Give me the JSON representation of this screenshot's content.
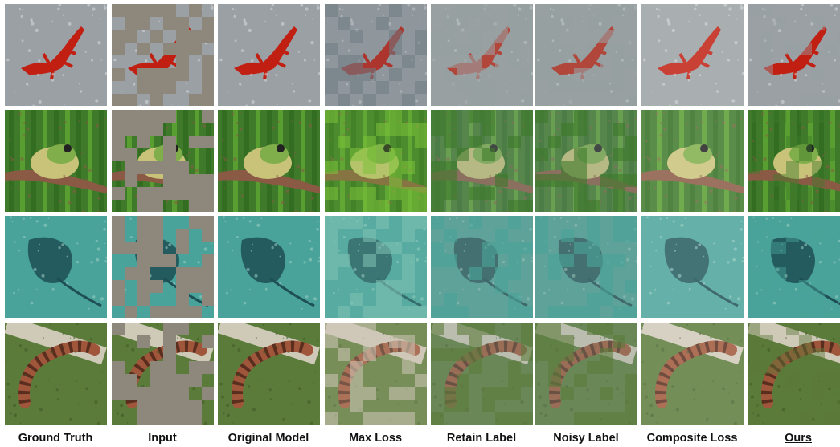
{
  "columns": [
    {
      "label": "Ground Truth",
      "kind": "clean",
      "underline": false
    },
    {
      "label": "Input",
      "kind": "masked",
      "underline": false
    },
    {
      "label": "Original Model",
      "kind": "clean",
      "underline": false
    },
    {
      "label": "Max Loss",
      "kind": "distorted",
      "underline": false
    },
    {
      "label": "Retain Label",
      "kind": "faded",
      "underline": false
    },
    {
      "label": "Noisy Label",
      "kind": "faded",
      "underline": false
    },
    {
      "label": "Composite Loss",
      "kind": "light",
      "underline": false
    },
    {
      "label": "Ours",
      "kind": "partial",
      "underline": true
    }
  ],
  "rows": [
    {
      "subject": "red-lizard-on-gravel",
      "bg": "#9aa0a4",
      "accent": "#c01f12",
      "accent2": "#6f7a84",
      "speckle": "#d8dadc"
    },
    {
      "subject": "frog-on-branch",
      "bg": "#3e7a2a",
      "accent": "#c9c37a",
      "accent2": "#7bc23a",
      "speckle": "#8a5a45"
    },
    {
      "subject": "stingray-on-sand",
      "bg": "#4aa39a",
      "accent": "#1d4f55",
      "accent2": "#7fc3b5",
      "speckle": "#9ed0c4"
    },
    {
      "subject": "striped-lizard-on-grass",
      "bg": "#5b7b3a",
      "accent": "#a0563a",
      "accent2": "#cfc9b8",
      "speckle": "#3f5a26"
    }
  ],
  "mask_color": "#8d877c"
}
